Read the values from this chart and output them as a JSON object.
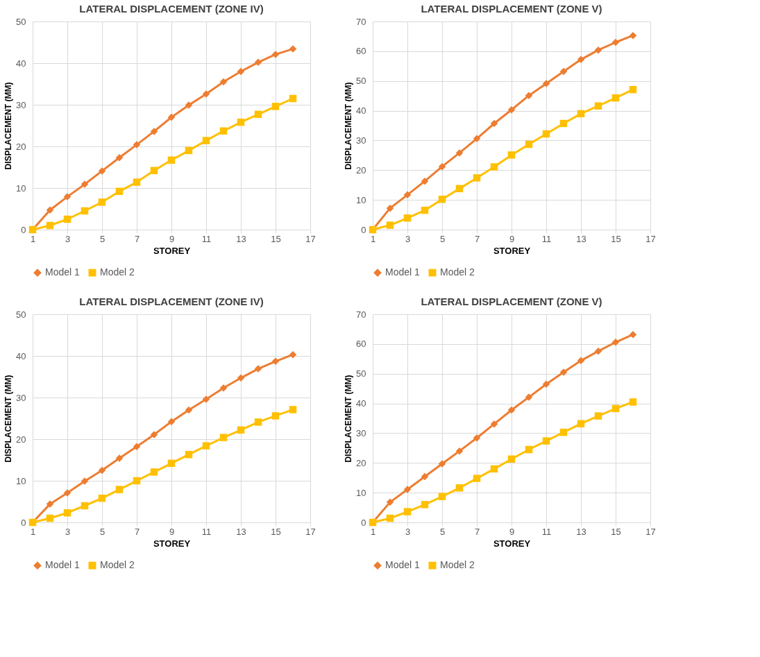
{
  "chart_data": [
    {
      "type": "line",
      "title": "LATERAL DISPLACEMENT (ZONE IV)",
      "xlabel": "STOREY",
      "ylabel": "DISPLACEMENT (MM)",
      "x": [
        1,
        2,
        3,
        4,
        5,
        6,
        7,
        8,
        9,
        10,
        11,
        12,
        13,
        14,
        15,
        16
      ],
      "xlim": [
        1,
        17
      ],
      "xticks": [
        1,
        3,
        5,
        7,
        9,
        11,
        13,
        15,
        17
      ],
      "ylim": [
        0,
        50
      ],
      "yticks": [
        0,
        10,
        20,
        30,
        40,
        50
      ],
      "grid": true,
      "legend": "bottom",
      "line_style": "solid",
      "series": [
        {
          "name": "Model 1",
          "color": "#ed7d31",
          "marker": "diamond",
          "values": [
            0,
            4.7,
            7.9,
            10.9,
            14.1,
            17.3,
            20.4,
            23.6,
            27,
            29.9,
            32.6,
            35.5,
            38,
            40.2,
            42.1,
            43.4
          ]
        },
        {
          "name": "Model 2",
          "color": "#ffc000",
          "marker": "square",
          "values": [
            0,
            1,
            2.5,
            4.5,
            6.6,
            9.2,
            11.4,
            14.2,
            16.7,
            19,
            21.4,
            23.7,
            25.8,
            27.7,
            29.6,
            31.5
          ]
        }
      ]
    },
    {
      "type": "line",
      "title": "LATERAL DISPLACEMENT (ZONE V)",
      "xlabel": "STOREY",
      "ylabel": "DISPLACEMENT (MM)",
      "x": [
        1,
        2,
        3,
        4,
        5,
        6,
        7,
        8,
        9,
        10,
        11,
        12,
        13,
        14,
        15,
        16
      ],
      "xlim": [
        1,
        17
      ],
      "xticks": [
        1,
        3,
        5,
        7,
        9,
        11,
        13,
        15,
        17
      ],
      "ylim": [
        0,
        70
      ],
      "yticks": [
        0,
        10,
        20,
        30,
        40,
        50,
        60,
        70
      ],
      "grid": true,
      "legend": "bottom",
      "line_style": "solid",
      "series": [
        {
          "name": "Model 1",
          "color": "#ed7d31",
          "marker": "diamond",
          "values": [
            0,
            7.2,
            11.7,
            16.3,
            21.2,
            25.8,
            30.6,
            35.7,
            40.3,
            45.1,
            49.1,
            53.2,
            57.2,
            60.4,
            63,
            65.3
          ]
        },
        {
          "name": "Model 2",
          "color": "#ffc000",
          "marker": "square",
          "values": [
            0,
            1.5,
            3.9,
            6.5,
            10.2,
            13.8,
            17.4,
            21.1,
            25.1,
            28.7,
            32.2,
            35.7,
            39,
            41.6,
            44.3,
            47.1
          ]
        }
      ]
    },
    {
      "type": "line",
      "title": "LATERAL DISPLACEMENT (ZONE IV)",
      "xlabel": "STOREY",
      "ylabel": "DISPLACEMENT (MM)",
      "x": [
        1,
        2,
        3,
        4,
        5,
        6,
        7,
        8,
        9,
        10,
        11,
        12,
        13,
        14,
        15,
        16
      ],
      "xlim": [
        1,
        17
      ],
      "xticks": [
        1,
        3,
        5,
        7,
        9,
        11,
        13,
        15,
        17
      ],
      "ylim": [
        0,
        50
      ],
      "yticks": [
        0,
        10,
        20,
        30,
        40,
        50
      ],
      "grid": true,
      "legend": "bottom",
      "line_style": "solid",
      "series": [
        {
          "name": "Model 1",
          "color": "#ed7d31",
          "marker": "diamond",
          "values": [
            0,
            4.4,
            7.1,
            9.9,
            12.5,
            15.4,
            18.2,
            21.1,
            24.2,
            27,
            29.6,
            32.3,
            34.7,
            36.9,
            38.7,
            40.3
          ]
        },
        {
          "name": "Model 2",
          "color": "#ffc000",
          "marker": "square",
          "values": [
            0,
            1,
            2.3,
            4,
            5.8,
            7.9,
            10,
            12.1,
            14.2,
            16.3,
            18.4,
            20.4,
            22.2,
            24.1,
            25.6,
            27.1
          ]
        }
      ]
    },
    {
      "type": "line",
      "title": "LATERAL DISPLACEMENT (ZONE V)",
      "xlabel": "STOREY",
      "ylabel": "DISPLACEMENT (MM)",
      "x": [
        1,
        2,
        3,
        4,
        5,
        6,
        7,
        8,
        9,
        10,
        11,
        12,
        13,
        14,
        15,
        16
      ],
      "xlim": [
        1,
        17
      ],
      "xticks": [
        1,
        3,
        5,
        7,
        9,
        11,
        13,
        15,
        17
      ],
      "ylim": [
        0,
        70
      ],
      "yticks": [
        0,
        10,
        20,
        30,
        40,
        50,
        60,
        70
      ],
      "grid": true,
      "legend": "bottom",
      "line_style": "solid",
      "series": [
        {
          "name": "Model 1",
          "color": "#ed7d31",
          "marker": "diamond",
          "values": [
            0,
            6.8,
            11.1,
            15.4,
            19.7,
            24,
            28.4,
            33.1,
            37.8,
            42.1,
            46.5,
            50.5,
            54.4,
            57.6,
            60.6,
            63.2
          ]
        },
        {
          "name": "Model 2",
          "color": "#ffc000",
          "marker": "square",
          "values": [
            0,
            1.4,
            3.6,
            6,
            8.7,
            11.6,
            14.8,
            18,
            21.3,
            24.5,
            27.4,
            30.3,
            33.2,
            35.8,
            38.3,
            40.5
          ]
        }
      ]
    }
  ]
}
